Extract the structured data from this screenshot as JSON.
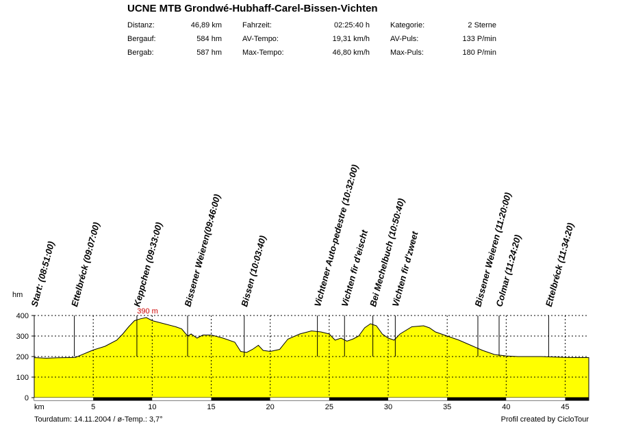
{
  "title": "UCNE MTB Grondwé-Hubhaff-Carel-Bissen-Vichten",
  "stats": [
    {
      "label": "Distanz:",
      "value": "46,89 km"
    },
    {
      "label": "Fahrzeit:",
      "value": "02:25:40 h"
    },
    {
      "label": "Kategorie:",
      "value": "2 Sterne"
    },
    {
      "label": "Bergauf:",
      "value": "584 hm"
    },
    {
      "label": "AV-Tempo:",
      "value": "19,31 km/h"
    },
    {
      "label": "AV-Puls:",
      "value": "133 P/min"
    },
    {
      "label": "Bergab:",
      "value": "587 hm"
    },
    {
      "label": "Max-Tempo:",
      "value": "46,80 km/h"
    },
    {
      "label": "Max-Puls:",
      "value": "180 P/min"
    }
  ],
  "footer": {
    "left": "Tourdatum: 14.11.2004  /  ø-Temp.: 3,7°",
    "right": "Profil created by CicloTour"
  },
  "chart_data": {
    "type": "area",
    "xlabel": "km",
    "ylabel": "hm",
    "xlim": [
      0,
      47
    ],
    "ylim": [
      0,
      400
    ],
    "x_ticks": [
      5,
      10,
      15,
      20,
      25,
      30,
      35,
      40,
      45
    ],
    "y_ticks": [
      0,
      100,
      200,
      300,
      400
    ],
    "grid": true,
    "fill_color": "#ffff00",
    "max_label": "390 m",
    "max_label_color": "#cc0000",
    "max_point": {
      "x": 9.3,
      "y": 390
    },
    "profile": [
      {
        "x": 0,
        "y": 195
      },
      {
        "x": 1,
        "y": 192
      },
      {
        "x": 2,
        "y": 194
      },
      {
        "x": 3,
        "y": 195
      },
      {
        "x": 3.5,
        "y": 196
      },
      {
        "x": 4,
        "y": 208
      },
      {
        "x": 5,
        "y": 232
      },
      {
        "x": 6,
        "y": 250
      },
      {
        "x": 7,
        "y": 280
      },
      {
        "x": 7.5,
        "y": 310
      },
      {
        "x": 8,
        "y": 345
      },
      {
        "x": 8.5,
        "y": 375
      },
      {
        "x": 9,
        "y": 384
      },
      {
        "x": 9.5,
        "y": 390
      },
      {
        "x": 10,
        "y": 375
      },
      {
        "x": 11,
        "y": 360
      },
      {
        "x": 12,
        "y": 345
      },
      {
        "x": 12.5,
        "y": 335
      },
      {
        "x": 13,
        "y": 300
      },
      {
        "x": 13.3,
        "y": 310
      },
      {
        "x": 13.8,
        "y": 290
      },
      {
        "x": 14.3,
        "y": 305
      },
      {
        "x": 15,
        "y": 305
      },
      {
        "x": 16,
        "y": 290
      },
      {
        "x": 17,
        "y": 270
      },
      {
        "x": 17.5,
        "y": 225
      },
      {
        "x": 18,
        "y": 220
      },
      {
        "x": 18.5,
        "y": 235
      },
      {
        "x": 19,
        "y": 255
      },
      {
        "x": 19.4,
        "y": 230
      },
      {
        "x": 20,
        "y": 225
      },
      {
        "x": 20.8,
        "y": 235
      },
      {
        "x": 21.5,
        "y": 285
      },
      {
        "x": 22.5,
        "y": 310
      },
      {
        "x": 23.5,
        "y": 325
      },
      {
        "x": 24.3,
        "y": 320
      },
      {
        "x": 25,
        "y": 310
      },
      {
        "x": 25.5,
        "y": 280
      },
      {
        "x": 26,
        "y": 290
      },
      {
        "x": 26.5,
        "y": 275
      },
      {
        "x": 27,
        "y": 285
      },
      {
        "x": 27.5,
        "y": 300
      },
      {
        "x": 28,
        "y": 340
      },
      {
        "x": 28.5,
        "y": 360
      },
      {
        "x": 29,
        "y": 350
      },
      {
        "x": 29.5,
        "y": 310
      },
      {
        "x": 30,
        "y": 290
      },
      {
        "x": 30.5,
        "y": 280
      },
      {
        "x": 31,
        "y": 310
      },
      {
        "x": 32,
        "y": 345
      },
      {
        "x": 33,
        "y": 350
      },
      {
        "x": 33.5,
        "y": 340
      },
      {
        "x": 34,
        "y": 320
      },
      {
        "x": 35,
        "y": 300
      },
      {
        "x": 36,
        "y": 280
      },
      {
        "x": 37,
        "y": 255
      },
      {
        "x": 38,
        "y": 230
      },
      {
        "x": 39,
        "y": 210
      },
      {
        "x": 40,
        "y": 203
      },
      {
        "x": 41,
        "y": 200
      },
      {
        "x": 42,
        "y": 200
      },
      {
        "x": 43,
        "y": 200
      },
      {
        "x": 44,
        "y": 198
      },
      {
        "x": 45,
        "y": 196
      },
      {
        "x": 46,
        "y": 195
      },
      {
        "x": 47,
        "y": 195
      }
    ],
    "waypoints": [
      {
        "label": "Start: (08:51:00)",
        "x": 0
      },
      {
        "label": "Ettelbréck (09:07:00)",
        "x": 3.4
      },
      {
        "label": "Keppchen (09:33:00)",
        "x": 8.7
      },
      {
        "label": "Bissener Weieren(09:46:00)",
        "x": 13.0
      },
      {
        "label": "Bissen (10:03:40)",
        "x": 17.8
      },
      {
        "label": "Vichtener Auto-pedestre (10:32:00)",
        "x": 24.0
      },
      {
        "label": "Vichten fir d'eischt",
        "x": 26.3
      },
      {
        "label": "Bei Mechelbuch (10:50:40)",
        "x": 28.7
      },
      {
        "label": "Vichten fir d'zweet",
        "x": 30.6
      },
      {
        "label": "Bissener Weieren (11:20:00)",
        "x": 37.6
      },
      {
        "label": "Colmar (11:24:20)",
        "x": 39.4
      },
      {
        "label": "Ettelbréck (11:34:20)",
        "x": 43.6
      }
    ],
    "bar_segments": [
      {
        "from": 0,
        "to": 5,
        "color": "#ffffff"
      },
      {
        "from": 5,
        "to": 10,
        "color": "#000000"
      },
      {
        "from": 10,
        "to": 15,
        "color": "#ffffff"
      },
      {
        "from": 15,
        "to": 20,
        "color": "#000000"
      },
      {
        "from": 20,
        "to": 25,
        "color": "#ffffff"
      },
      {
        "from": 25,
        "to": 30,
        "color": "#000000"
      },
      {
        "from": 30,
        "to": 35,
        "color": "#ffffff"
      },
      {
        "from": 35,
        "to": 40,
        "color": "#000000"
      },
      {
        "from": 40,
        "to": 45,
        "color": "#ffffff"
      },
      {
        "from": 45,
        "to": 47,
        "color": "#000000"
      }
    ]
  }
}
